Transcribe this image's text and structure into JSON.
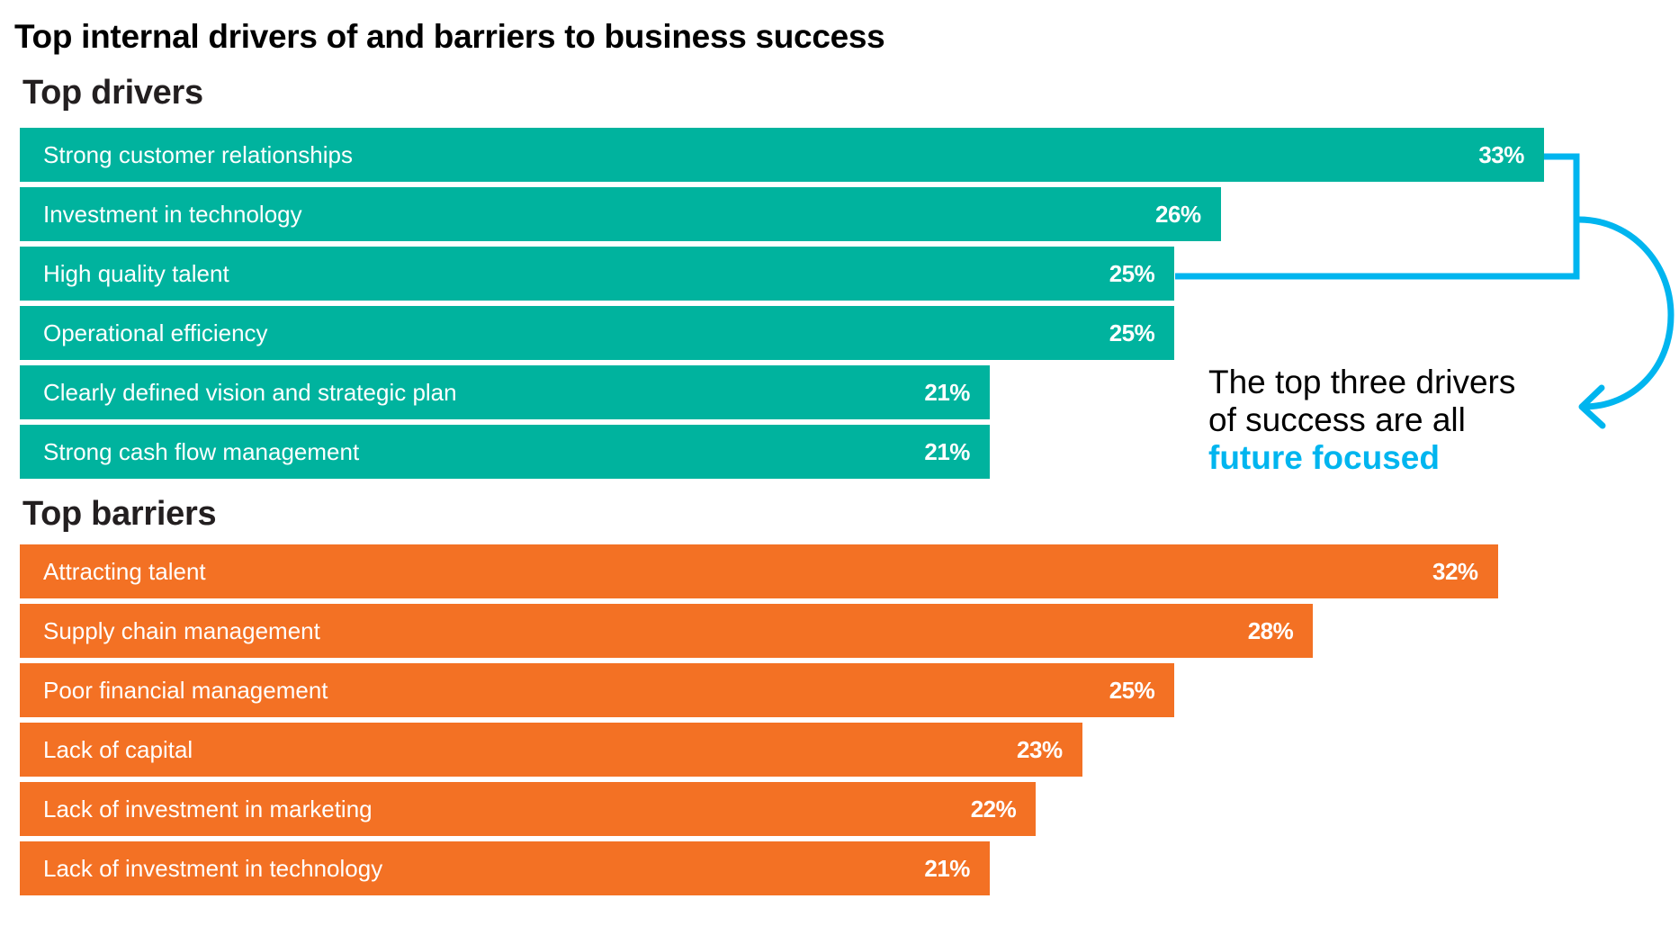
{
  "colors": {
    "drivers": "#00b39e",
    "barriers": "#f37124",
    "accent": "#00b5ef",
    "text": "#000000"
  },
  "chart_data": {
    "type": "bar",
    "orientation": "horizontal",
    "title": "Top internal drivers of and barriers to business success",
    "unit": "%",
    "xlim": [
      0,
      33
    ],
    "grid": false,
    "groups": [
      {
        "name": "Top drivers",
        "color": "#00b39e",
        "categories": [
          "Strong customer relationships",
          "Investment in technology",
          "High quality talent",
          "Operational efficiency",
          "Clearly defined vision and strategic plan",
          "Strong cash flow management"
        ],
        "values": [
          33,
          26,
          25,
          25,
          21,
          21
        ],
        "value_labels": [
          "33%",
          "26%",
          "25%",
          "25%",
          "21%",
          "21%"
        ]
      },
      {
        "name": "Top barriers",
        "color": "#f37124",
        "categories": [
          "Attracting talent",
          "Supply chain management",
          "Poor financial management",
          "Lack of capital",
          "Lack of investment in marketing",
          "Lack of investment in technology"
        ],
        "values": [
          32,
          28,
          25,
          23,
          22,
          21
        ],
        "value_labels": [
          "32%",
          "28%",
          "25%",
          "23%",
          "22%",
          "21%"
        ]
      }
    ],
    "annotations": [
      {
        "type": "bracket-arrow",
        "spans_group": "Top drivers",
        "spans_items": [
          0,
          1,
          2
        ],
        "color": "#00b5ef",
        "text_lines": [
          "The top three drivers",
          "of success are all"
        ],
        "emphasis": "future focused"
      }
    ]
  }
}
